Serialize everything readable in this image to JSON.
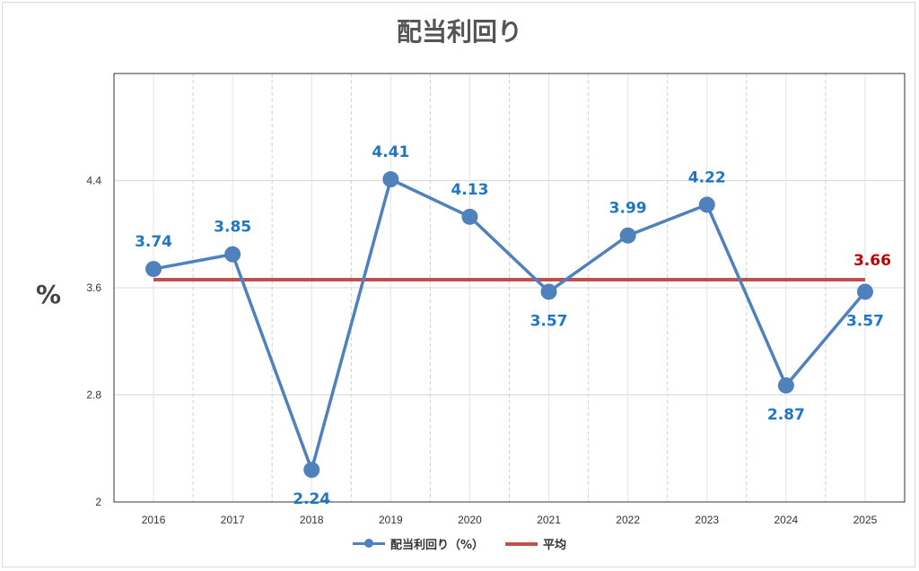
{
  "chart_data": {
    "type": "line",
    "title": "配当利回り",
    "ylabel": "%",
    "xlabel": "",
    "categories": [
      "2016",
      "2017",
      "2018",
      "2019",
      "2020",
      "2021",
      "2022",
      "2023",
      "2024",
      "2025"
    ],
    "series": [
      {
        "name": "配当利回り（%）",
        "values": [
          3.74,
          3.85,
          2.24,
          4.41,
          4.13,
          3.57,
          3.99,
          4.22,
          2.87,
          3.57
        ],
        "color": "#4f81bd"
      },
      {
        "name": "平均",
        "values": [
          3.66,
          3.66,
          3.66,
          3.66,
          3.66,
          3.66,
          3.66,
          3.66,
          3.66,
          3.66
        ],
        "color": "#c0504d"
      }
    ],
    "average_label": "3.66",
    "data_labels": [
      "3.74",
      "3.85",
      "2.24",
      "4.41",
      "4.13",
      "3.57",
      "3.99",
      "4.22",
      "2.87",
      "3.57"
    ],
    "yticks": [
      "2",
      "2.8",
      "3.6",
      "4.4"
    ],
    "ylim": [
      2,
      5.2
    ],
    "grid": true,
    "legend_position": "bottom"
  }
}
